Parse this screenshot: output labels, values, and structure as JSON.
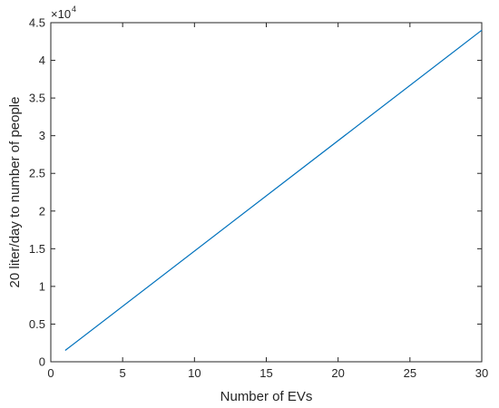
{
  "chart_data": {
    "type": "line",
    "xlabel": "Number of EVs",
    "ylabel": "20 liter/day to number of people",
    "xlim": [
      0,
      30
    ],
    "ylim": [
      0,
      45000
    ],
    "x_ticks": [
      0,
      5,
      10,
      15,
      20,
      25,
      30
    ],
    "x_tick_labels": [
      "0",
      "5",
      "10",
      "15",
      "20",
      "25",
      "30"
    ],
    "y_ticks": [
      0,
      5000,
      10000,
      15000,
      20000,
      25000,
      30000,
      35000,
      40000,
      45000
    ],
    "y_tick_labels": [
      "0",
      "0.5",
      "1",
      "1.5",
      "2",
      "2.5",
      "3",
      "3.5",
      "4",
      "4.5"
    ],
    "y_exponent_base": "×10",
    "y_exponent_power": "4",
    "grid": false,
    "line_color": "#0072BD",
    "series": [
      {
        "x": [
          1,
          30
        ],
        "values": [
          1500,
          44000
        ]
      }
    ]
  }
}
